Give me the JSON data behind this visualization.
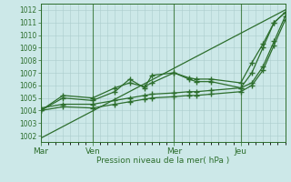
{
  "title": "",
  "xlabel": "Pression niveau de la mer( hPa )",
  "background_color": "#cce8e8",
  "plot_bg_color": "#cce8e8",
  "grid_color": "#aacccc",
  "line_color": "#2d6e2d",
  "ylim": [
    1001.5,
    1012.5
  ],
  "yticks": [
    1002,
    1003,
    1004,
    1005,
    1006,
    1007,
    1008,
    1009,
    1010,
    1011,
    1012
  ],
  "day_labels": [
    "Mar",
    "Ven",
    "Mer",
    "Jeu"
  ],
  "day_positions": [
    0,
    56,
    144,
    216
  ],
  "x_max": 264,
  "lines": [
    {
      "x": [
        0,
        264
      ],
      "y": [
        1001.8,
        1012.0
      ],
      "marker": null,
      "markersize": 0,
      "linewidth": 0.9
    },
    {
      "x": [
        0,
        24,
        56,
        80,
        96,
        112,
        120,
        144,
        160,
        168,
        184,
        216,
        228,
        240,
        252,
        264
      ],
      "y": [
        1004.0,
        1005.2,
        1005.0,
        1005.8,
        1006.2,
        1005.9,
        1006.2,
        1007.0,
        1006.6,
        1006.5,
        1006.5,
        1006.2,
        1007.8,
        1009.3,
        1011.0,
        1011.8
      ],
      "marker": "+",
      "markersize": 4,
      "linewidth": 0.9
    },
    {
      "x": [
        0,
        24,
        56,
        80,
        96,
        112,
        120,
        144,
        160,
        168,
        184,
        216,
        228,
        240,
        252,
        264
      ],
      "y": [
        1004.0,
        1005.0,
        1004.8,
        1005.5,
        1006.5,
        1005.8,
        1006.8,
        1007.0,
        1006.5,
        1006.3,
        1006.3,
        1005.8,
        1007.0,
        1009.0,
        1011.0,
        1011.8
      ],
      "marker": "+",
      "markersize": 4,
      "linewidth": 0.9
    },
    {
      "x": [
        0,
        24,
        56,
        80,
        96,
        112,
        120,
        144,
        160,
        168,
        184,
        216,
        228,
        240,
        252,
        264
      ],
      "y": [
        1004.2,
        1004.5,
        1004.5,
        1004.8,
        1005.0,
        1005.2,
        1005.3,
        1005.4,
        1005.5,
        1005.5,
        1005.6,
        1005.8,
        1006.2,
        1007.5,
        1009.5,
        1011.5
      ],
      "marker": "+",
      "markersize": 4,
      "linewidth": 0.9
    },
    {
      "x": [
        0,
        24,
        56,
        80,
        96,
        112,
        120,
        144,
        160,
        168,
        184,
        216,
        228,
        240,
        252,
        264
      ],
      "y": [
        1004.0,
        1004.3,
        1004.2,
        1004.5,
        1004.7,
        1004.9,
        1005.0,
        1005.1,
        1005.2,
        1005.2,
        1005.3,
        1005.5,
        1006.0,
        1007.2,
        1009.2,
        1011.2
      ],
      "marker": "+",
      "markersize": 4,
      "linewidth": 0.9
    }
  ]
}
